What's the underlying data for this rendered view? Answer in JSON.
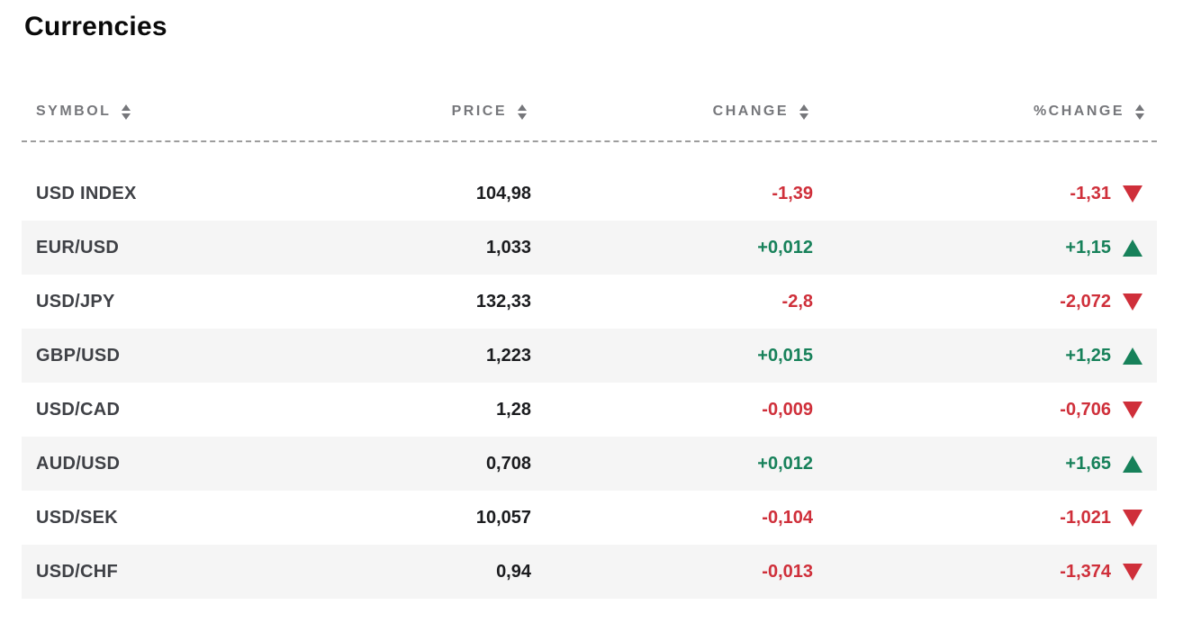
{
  "page": {
    "title": "Currencies"
  },
  "colors": {
    "positive": "#17815a",
    "negative": "#cf2f3a",
    "row_alt": "#f5f5f5",
    "header_text": "#76777b"
  },
  "icons": {
    "sort": "sort-arrows-icon",
    "up": "up-triangle-icon",
    "down": "down-triangle-icon"
  },
  "table": {
    "columns": [
      {
        "key": "symbol",
        "label": "SYMBOL"
      },
      {
        "key": "price",
        "label": "PRICE"
      },
      {
        "key": "change",
        "label": "CHANGE"
      },
      {
        "key": "pct_change",
        "label": "%CHANGE"
      }
    ],
    "rows": [
      {
        "symbol": "USD INDEX",
        "price": "104,98",
        "change": "-1,39",
        "pct_change": "-1,31",
        "direction": "down"
      },
      {
        "symbol": "EUR/USD",
        "price": "1,033",
        "change": "+0,012",
        "pct_change": "+1,15",
        "direction": "up"
      },
      {
        "symbol": "USD/JPY",
        "price": "132,33",
        "change": "-2,8",
        "pct_change": "-2,072",
        "direction": "down"
      },
      {
        "symbol": "GBP/USD",
        "price": "1,223",
        "change": "+0,015",
        "pct_change": "+1,25",
        "direction": "up"
      },
      {
        "symbol": "USD/CAD",
        "price": "1,28",
        "change": "-0,009",
        "pct_change": "-0,706",
        "direction": "down"
      },
      {
        "symbol": "AUD/USD",
        "price": "0,708",
        "change": "+0,012",
        "pct_change": "+1,65",
        "direction": "up"
      },
      {
        "symbol": "USD/SEK",
        "price": "10,057",
        "change": "-0,104",
        "pct_change": "-1,021",
        "direction": "down"
      },
      {
        "symbol": "USD/CHF",
        "price": "0,94",
        "change": "-0,013",
        "pct_change": "-1,374",
        "direction": "down"
      }
    ]
  }
}
